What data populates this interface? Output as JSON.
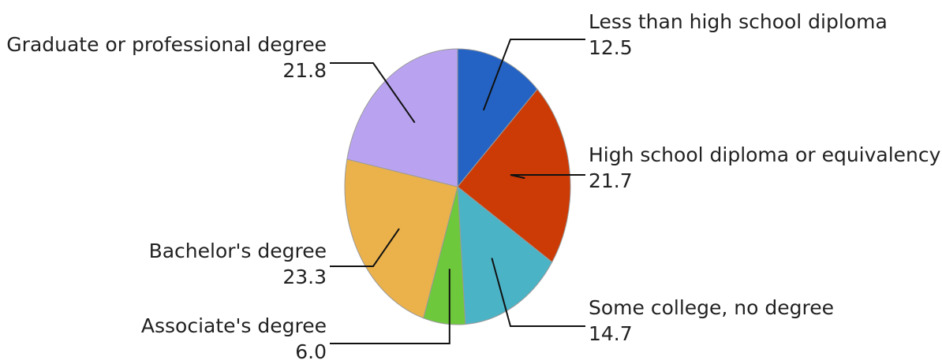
{
  "chart_data": {
    "type": "pie",
    "title": "",
    "categories": [
      "Less than high school diploma",
      "High school diploma or equivalency",
      "Some college, no degree",
      "Associate's degree",
      "Bachelor's degree",
      "Graduate or professional degree"
    ],
    "values": [
      12.5,
      21.7,
      14.7,
      6.0,
      23.3,
      21.8
    ],
    "value_labels": [
      "12.5",
      "21.7",
      "14.7",
      "6.0",
      "23.3",
      "21.8"
    ],
    "colors": [
      "#2463c4",
      "#cc3a05",
      "#4bb3c6",
      "#6ec83c",
      "#ebb24c",
      "#b9a3f0"
    ],
    "start_angle": "12 o'clock",
    "direction": "clockwise",
    "legend": "none"
  }
}
